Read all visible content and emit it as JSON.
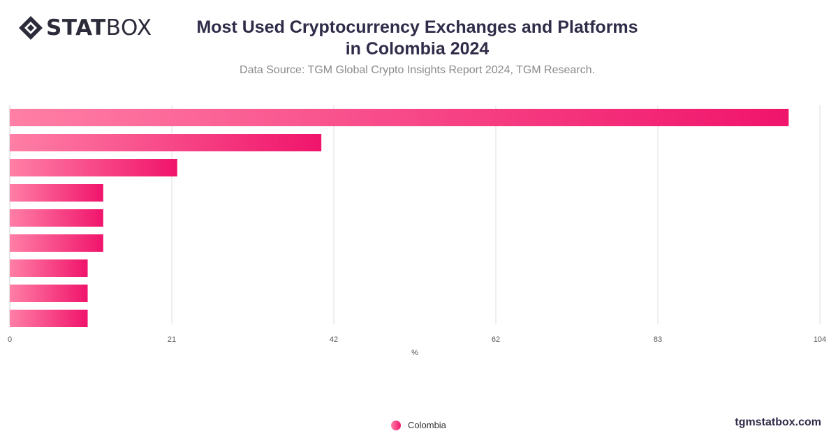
{
  "header": {
    "logo_bold": "STAT",
    "logo_light": "BOX",
    "title_line1": "Most Used Cryptocurrency Exchanges and Platforms",
    "title_line2": "in Colombia 2024",
    "subtitle": "Data Source: TGM Global Crypto Insights Report 2024, TGM Research."
  },
  "footer": {
    "site": "tgmstatbox.com"
  },
  "colors": {
    "bar_start": "#ff7fa6",
    "bar_end": "#f0146b",
    "grid": "#dddddd"
  },
  "chart_data": {
    "type": "bar",
    "orientation": "horizontal",
    "title": "Most Used Cryptocurrency Exchanges and Platforms in Colombia 2024",
    "xlabel": "%",
    "ylabel": "",
    "xlim": [
      0,
      104
    ],
    "x_ticks": [
      "0",
      "21",
      "42",
      "62",
      "83",
      "104"
    ],
    "grid": true,
    "legend_position": "bottom",
    "categories": [
      "",
      "",
      "",
      "",
      "",
      "",
      "",
      "",
      ""
    ],
    "series": [
      {
        "name": "Colombia",
        "values": [
          100,
          40,
          21.5,
          12,
          12,
          12,
          10,
          10,
          10
        ]
      }
    ]
  }
}
